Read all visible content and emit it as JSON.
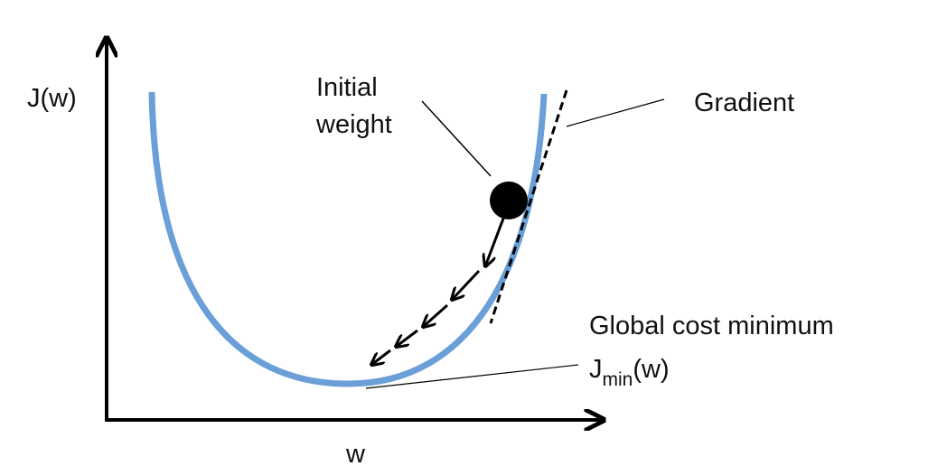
{
  "axes": {
    "y_label": "J(w)",
    "x_label": "w"
  },
  "annotations": {
    "initial_weight": [
      "Initial",
      "weight"
    ],
    "gradient": "Gradient",
    "minimum": {
      "title": "Global cost minimum",
      "symbol": "J",
      "subscript": "min",
      "suffix": "(w)"
    }
  }
}
